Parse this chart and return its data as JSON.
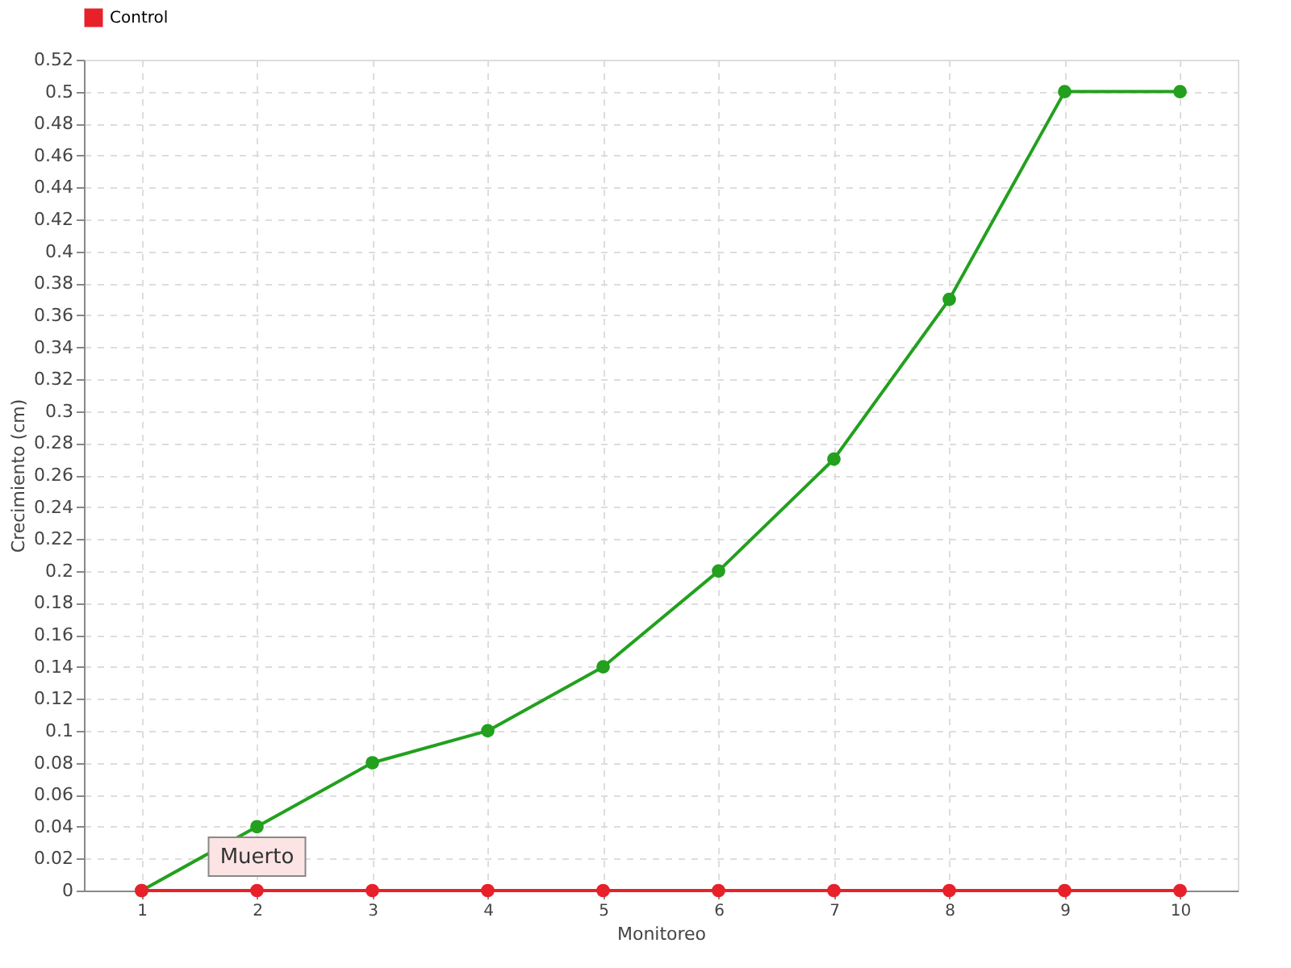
{
  "chart_data": {
    "type": "line",
    "xlabel": "Monitoreo",
    "ylabel": "Crecimiento (cm)",
    "categories": [
      "1",
      "2",
      "3",
      "4",
      "5",
      "6",
      "7",
      "8",
      "9",
      "10"
    ],
    "series": [
      {
        "color": "#22a01e",
        "values": [
          0,
          0.04,
          0.08,
          0.1,
          0.14,
          0.2,
          0.27,
          0.37,
          0.5,
          0.5
        ]
      },
      {
        "name": "Control",
        "color": "#e8202a",
        "values": [
          0,
          0,
          0,
          0,
          0,
          0,
          0,
          0,
          0,
          0
        ]
      }
    ],
    "ylim": [
      0,
      0.52
    ],
    "yticks": [
      0,
      0.02,
      0.04,
      0.06,
      0.08,
      0.1,
      0.12,
      0.14,
      0.16,
      0.18,
      0.2,
      0.22,
      0.24,
      0.26,
      0.28,
      0.3,
      0.32,
      0.34,
      0.36,
      0.38,
      0.4,
      0.42,
      0.44,
      0.46,
      0.48,
      0.5,
      0.52
    ],
    "annotations": [
      {
        "text": "Muerto",
        "x": "2",
        "y": 0
      }
    ],
    "grid": true,
    "legend": "top left",
    "marker": "circle",
    "line_style": "solid"
  }
}
